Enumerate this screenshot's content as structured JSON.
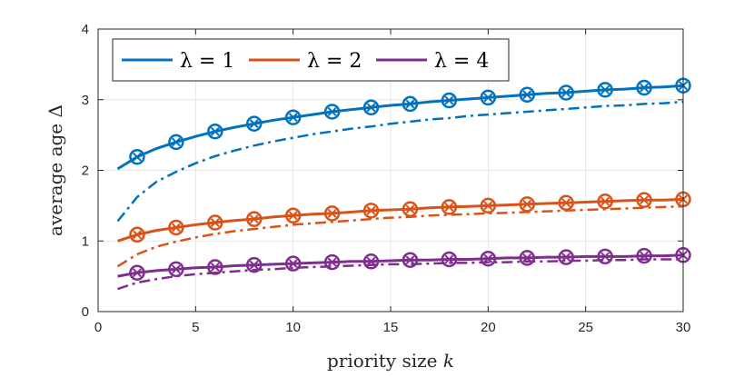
{
  "chart_data": {
    "type": "line",
    "xlabel": "priority size",
    "xlabel_var": "k",
    "ylabel": "average age",
    "ylabel_var": "Δ",
    "xlim": [
      0,
      30
    ],
    "ylim": [
      0,
      4
    ],
    "xticks": [
      0,
      5,
      10,
      15,
      20,
      25,
      30
    ],
    "yticks": [
      0,
      1,
      2,
      3,
      4
    ],
    "grid": true,
    "legend_position": "top-left",
    "series": [
      {
        "name": "λ = 1",
        "color": "#0072BD",
        "solid": {
          "x": [
            1,
            2,
            3,
            4,
            5,
            6,
            7,
            8,
            9,
            10,
            11,
            12,
            13,
            14,
            15,
            16,
            17,
            18,
            19,
            20,
            21,
            22,
            23,
            24,
            25,
            26,
            27,
            28,
            29,
            30
          ],
          "y": [
            2.02,
            2.19,
            2.31,
            2.4,
            2.48,
            2.55,
            2.61,
            2.66,
            2.71,
            2.75,
            2.79,
            2.83,
            2.86,
            2.89,
            2.92,
            2.94,
            2.97,
            2.99,
            3.01,
            3.03,
            3.05,
            3.07,
            3.09,
            3.1,
            3.12,
            3.14,
            3.15,
            3.17,
            3.18,
            3.2
          ]
        },
        "dashdot": {
          "x": [
            1,
            2,
            3,
            4,
            5,
            6,
            7,
            8,
            9,
            10,
            11,
            12,
            13,
            14,
            15,
            16,
            17,
            18,
            19,
            20,
            21,
            22,
            23,
            24,
            25,
            26,
            27,
            28,
            29,
            30
          ],
          "y": [
            1.28,
            1.62,
            1.84,
            1.98,
            2.1,
            2.2,
            2.28,
            2.35,
            2.41,
            2.46,
            2.51,
            2.55,
            2.59,
            2.62,
            2.66,
            2.69,
            2.72,
            2.74,
            2.77,
            2.79,
            2.81,
            2.83,
            2.85,
            2.87,
            2.89,
            2.91,
            2.92,
            2.94,
            2.95,
            2.97
          ]
        },
        "markers": {
          "x": [
            2,
            4,
            6,
            8,
            10,
            12,
            14,
            16,
            18,
            20,
            22,
            24,
            26,
            28,
            30
          ],
          "y": [
            2.19,
            2.4,
            2.55,
            2.66,
            2.75,
            2.83,
            2.89,
            2.94,
            2.99,
            3.03,
            3.07,
            3.1,
            3.14,
            3.17,
            3.2
          ]
        }
      },
      {
        "name": "λ = 2",
        "color": "#D95319",
        "solid": {
          "x": [
            1,
            2,
            3,
            4,
            5,
            6,
            7,
            8,
            9,
            10,
            11,
            12,
            13,
            14,
            15,
            16,
            17,
            18,
            19,
            20,
            21,
            22,
            23,
            24,
            25,
            26,
            27,
            28,
            29,
            30
          ],
          "y": [
            1.0,
            1.09,
            1.15,
            1.19,
            1.23,
            1.26,
            1.29,
            1.31,
            1.34,
            1.36,
            1.38,
            1.39,
            1.41,
            1.43,
            1.44,
            1.45,
            1.47,
            1.48,
            1.49,
            1.5,
            1.51,
            1.52,
            1.53,
            1.54,
            1.55,
            1.56,
            1.57,
            1.58,
            1.58,
            1.59
          ]
        },
        "dashdot": {
          "x": [
            1,
            2,
            3,
            4,
            5,
            6,
            7,
            8,
            9,
            10,
            11,
            12,
            13,
            14,
            15,
            16,
            17,
            18,
            19,
            20,
            21,
            22,
            23,
            24,
            25,
            26,
            27,
            28,
            29,
            30
          ],
          "y": [
            0.64,
            0.81,
            0.92,
            0.99,
            1.05,
            1.1,
            1.14,
            1.17,
            1.2,
            1.23,
            1.25,
            1.27,
            1.29,
            1.31,
            1.33,
            1.34,
            1.36,
            1.37,
            1.38,
            1.39,
            1.4,
            1.41,
            1.42,
            1.43,
            1.44,
            1.45,
            1.46,
            1.47,
            1.48,
            1.49
          ]
        },
        "markers": {
          "x": [
            2,
            4,
            6,
            8,
            10,
            12,
            14,
            16,
            18,
            20,
            22,
            24,
            26,
            28,
            30
          ],
          "y": [
            1.09,
            1.19,
            1.26,
            1.31,
            1.36,
            1.39,
            1.43,
            1.45,
            1.48,
            1.5,
            1.52,
            1.54,
            1.56,
            1.58,
            1.59
          ]
        }
      },
      {
        "name": "λ = 4",
        "color": "#7E2F8E",
        "solid": {
          "x": [
            1,
            2,
            3,
            4,
            5,
            6,
            7,
            8,
            9,
            10,
            11,
            12,
            13,
            14,
            15,
            16,
            17,
            18,
            19,
            20,
            21,
            22,
            23,
            24,
            25,
            26,
            27,
            28,
            29,
            30
          ],
          "y": [
            0.5,
            0.55,
            0.58,
            0.6,
            0.62,
            0.63,
            0.65,
            0.66,
            0.67,
            0.68,
            0.69,
            0.7,
            0.71,
            0.71,
            0.72,
            0.73,
            0.73,
            0.74,
            0.74,
            0.75,
            0.76,
            0.76,
            0.77,
            0.77,
            0.78,
            0.78,
            0.78,
            0.79,
            0.79,
            0.8
          ]
        },
        "dashdot": {
          "x": [
            1,
            2,
            3,
            4,
            5,
            6,
            7,
            8,
            9,
            10,
            11,
            12,
            13,
            14,
            15,
            16,
            17,
            18,
            19,
            20,
            21,
            22,
            23,
            24,
            25,
            26,
            27,
            28,
            29,
            30
          ],
          "y": [
            0.32,
            0.41,
            0.46,
            0.5,
            0.53,
            0.55,
            0.57,
            0.59,
            0.6,
            0.62,
            0.63,
            0.64,
            0.65,
            0.66,
            0.67,
            0.67,
            0.68,
            0.69,
            0.69,
            0.7,
            0.7,
            0.71,
            0.71,
            0.72,
            0.72,
            0.73,
            0.73,
            0.74,
            0.74,
            0.74
          ]
        },
        "markers": {
          "x": [
            2,
            4,
            6,
            8,
            10,
            12,
            14,
            16,
            18,
            20,
            22,
            24,
            26,
            28,
            30
          ],
          "y": [
            0.55,
            0.6,
            0.63,
            0.66,
            0.68,
            0.7,
            0.71,
            0.73,
            0.74,
            0.75,
            0.76,
            0.77,
            0.78,
            0.79,
            0.8
          ]
        }
      }
    ]
  }
}
